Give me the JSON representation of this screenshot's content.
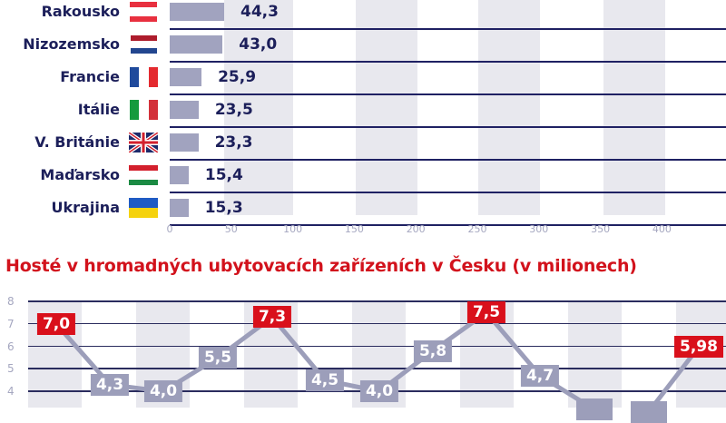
{
  "bar_chart": {
    "rows": [
      {
        "country": "Rakousko",
        "value": 44.3,
        "label": "44,3",
        "flag": "austria-flag"
      },
      {
        "country": "Nizozemsko",
        "value": 43.0,
        "label": "43,0",
        "flag": "netherlands-flag"
      },
      {
        "country": "Francie",
        "value": 25.9,
        "label": "25,9",
        "flag": "france-flag"
      },
      {
        "country": "Itálie",
        "value": 23.5,
        "label": "23,5",
        "flag": "italy-flag"
      },
      {
        "country": "V. Británie",
        "value": 23.3,
        "label": "23,3",
        "flag": "uk-flag"
      },
      {
        "country": "Maďarsko",
        "value": 15.4,
        "label": "15,4",
        "flag": "hungary-flag"
      },
      {
        "country": "Ukrajina",
        "value": 15.3,
        "label": "15,3",
        "flag": "ukraine-flag"
      }
    ],
    "x_ticks": [
      "0",
      "50",
      "100",
      "150",
      "200",
      "250",
      "300",
      "350",
      "400"
    ]
  },
  "line_chart": {
    "title": "Hosté v hromadných ubytovacích zařízeních v Česku (v milionech)",
    "y_ticks": [
      "8",
      "7",
      "6",
      "5",
      "4"
    ]
  },
  "colors": {
    "navy": "#1c1f5a",
    "bar": "#a1a3bf",
    "stripe": "#e8e8ee",
    "red": "#d9101b",
    "grey_label": "#9c9eba"
  },
  "chart_data": [
    {
      "type": "bar",
      "orientation": "horizontal",
      "title": "",
      "categories": [
        "Rakousko",
        "Nizozemsko",
        "Francie",
        "Itálie",
        "V. Británie",
        "Maďarsko",
        "Ukrajina"
      ],
      "values": [
        44.3,
        43.0,
        25.9,
        23.5,
        23.3,
        15.4,
        15.3
      ],
      "xlabel": "",
      "ylabel": "",
      "xlim": [
        0,
        450
      ],
      "x_ticks": [
        0,
        50,
        100,
        150,
        200,
        250,
        300,
        350,
        400
      ],
      "grid": "alternating vertical bands",
      "note": "Top of chart cropped; first visible row is Rakousko"
    },
    {
      "type": "line",
      "title": "Hosté v hromadných ubytovacích zařízeních v Česku (v milionech)",
      "x": [
        1,
        2,
        3,
        4,
        5,
        6,
        7,
        8,
        9,
        10,
        11,
        12,
        13
      ],
      "values": [
        7.0,
        4.3,
        4.0,
        5.5,
        7.3,
        4.5,
        4.0,
        5.8,
        7.5,
        4.7,
        null,
        null,
        5.98
      ],
      "labels": [
        "7,0",
        "4,3",
        "4,0",
        "5,5",
        "7,3",
        "4,5",
        "4,0",
        "5,8",
        "7,5",
        "4,7",
        "",
        "",
        "5,98"
      ],
      "highlighted": [
        true,
        false,
        false,
        false,
        true,
        false,
        false,
        false,
        true,
        false,
        false,
        false,
        true
      ],
      "ylabel": "",
      "ylim": [
        3.5,
        8
      ],
      "y_ticks": [
        4,
        5,
        6,
        7,
        8
      ],
      "grid": "horizontal lines + alternating vertical bands",
      "note": "Points 11 and 12 fall below the visible crop (values < 4)"
    }
  ]
}
